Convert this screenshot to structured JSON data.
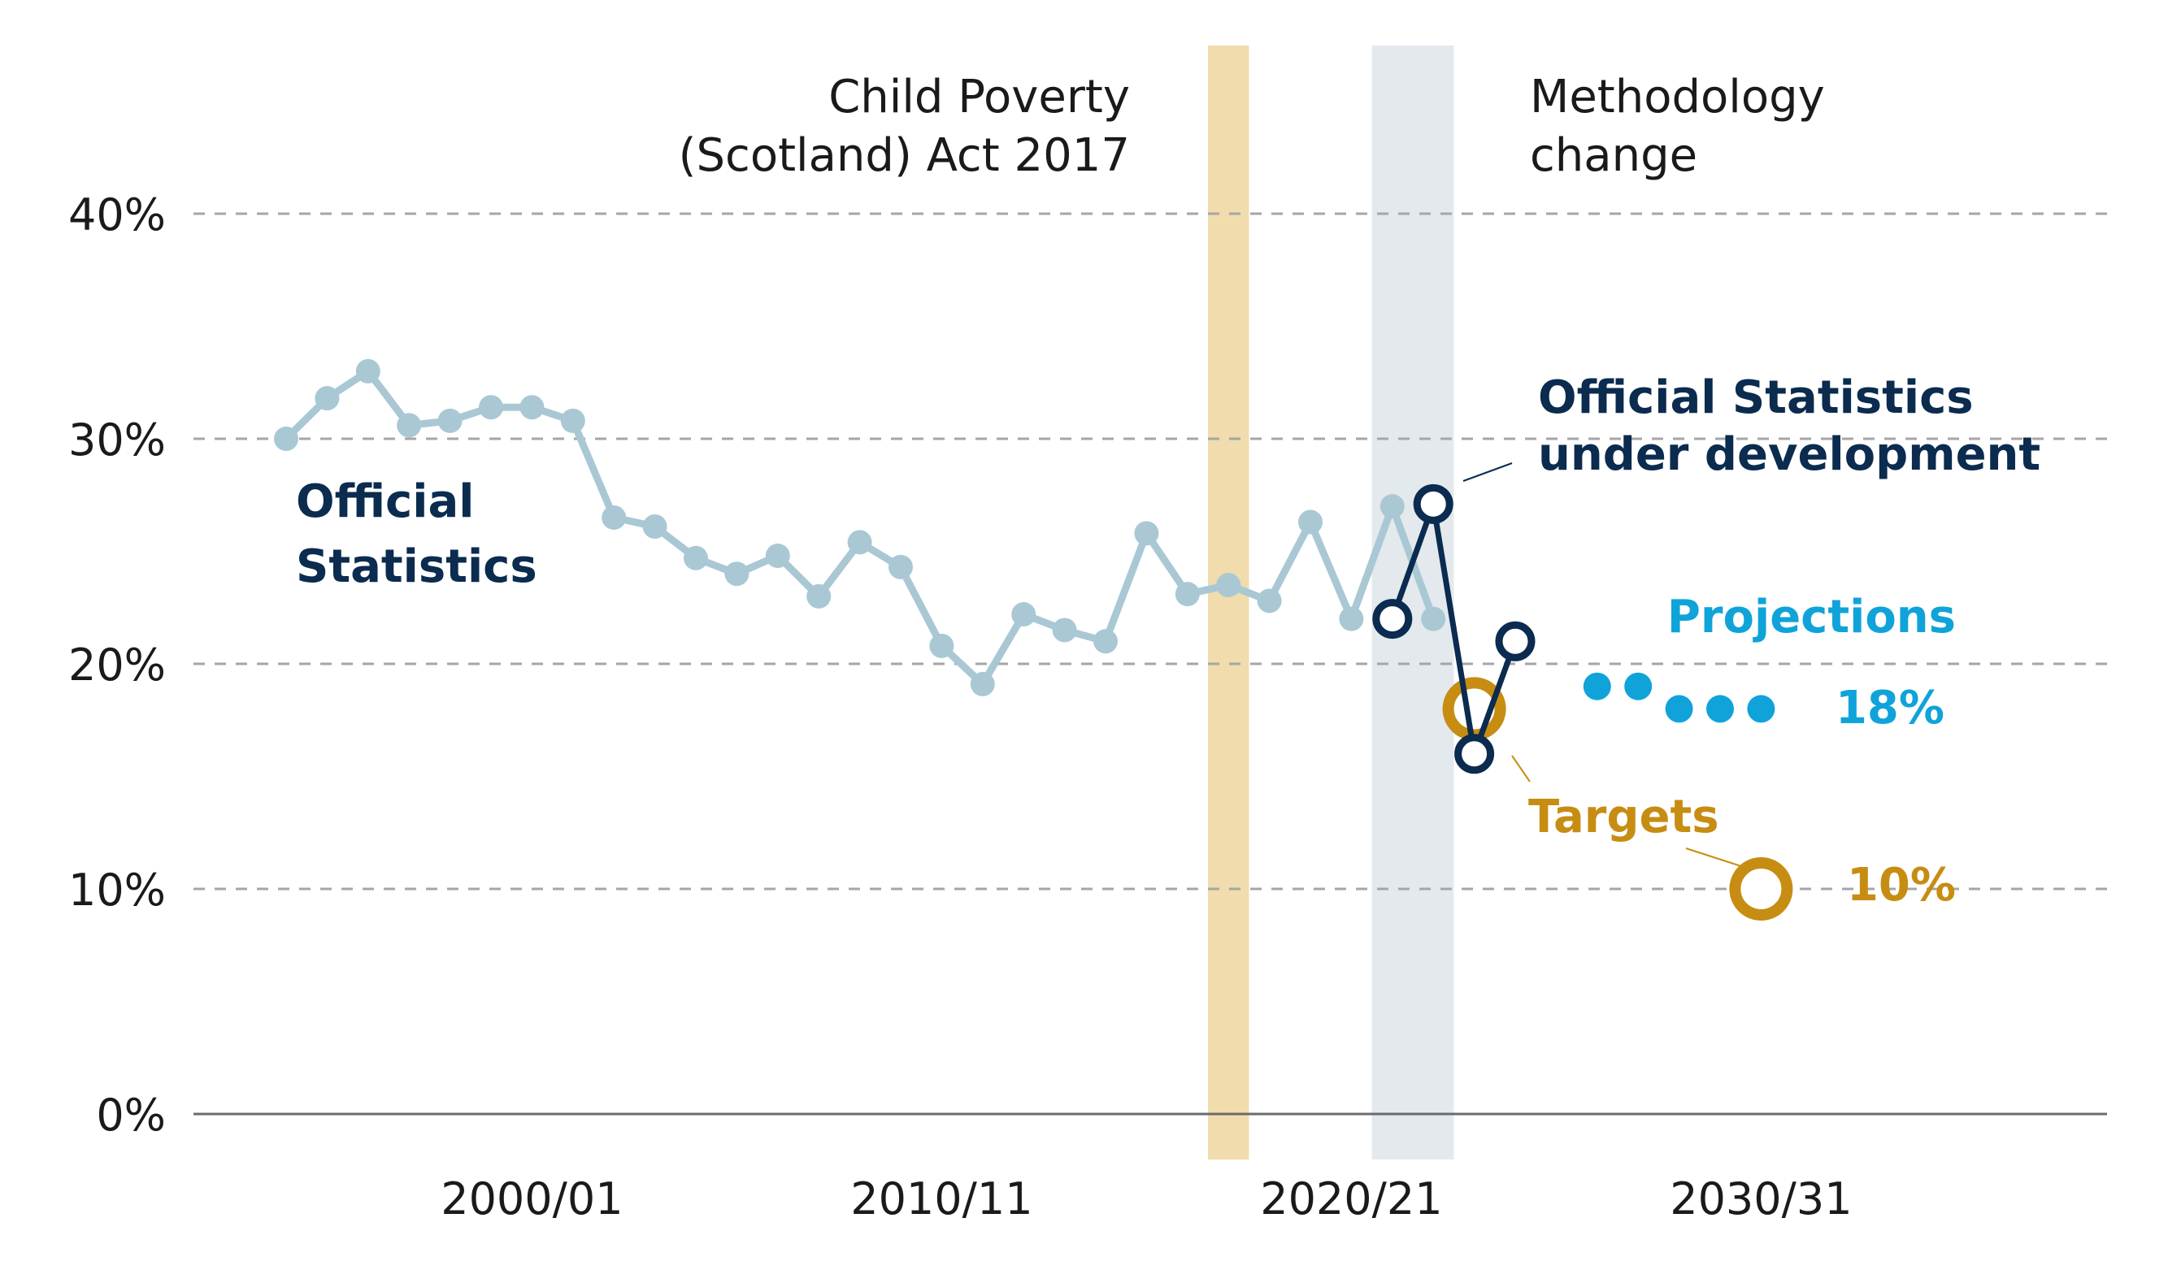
{
  "chart_data": {
    "type": "line",
    "ylim": [
      0,
      40
    ],
    "y_ticks": [
      "0%",
      "10%",
      "20%",
      "30%",
      "40%"
    ],
    "x_ticks": [
      {
        "x": 2000,
        "label": "2000/01"
      },
      {
        "x": 2010,
        "label": "2010/11"
      },
      {
        "x": 2020,
        "label": "2020/21"
      },
      {
        "x": 2030,
        "label": "2030/31"
      }
    ],
    "xlim": [
      1992,
      2039
    ],
    "grid": "dashed horizontal",
    "bands": [
      {
        "name": "act",
        "x_start": 2016.5,
        "x_end": 2017.5,
        "color": "#F0DCAC"
      },
      {
        "name": "method",
        "x_start": 2020.5,
        "x_end": 2022.5,
        "color": "#E4E9EE"
      }
    ],
    "band_labels": {
      "act": [
        "Child Poverty",
        "(Scotland) Act 2017"
      ],
      "method": [
        "Methodology",
        "change"
      ]
    },
    "series": [
      {
        "name": "Official Statistics",
        "label_lines": [
          "Official",
          "Statistics"
        ],
        "color": "#A9C8D4",
        "x": [
          1994,
          1995,
          1996,
          1997,
          1998,
          1999,
          2000,
          2001,
          2002,
          2003,
          2004,
          2005,
          2006,
          2007,
          2008,
          2009,
          2010,
          2011,
          2012,
          2013,
          2014,
          2015,
          2016,
          2017,
          2018,
          2019,
          2020,
          2021,
          2022
        ],
        "y": [
          30.0,
          31.8,
          33.0,
          30.6,
          30.8,
          31.4,
          31.4,
          30.8,
          26.5,
          26.1,
          24.7,
          24.0,
          24.8,
          23.0,
          25.4,
          24.3,
          20.8,
          19.1,
          22.2,
          21.5,
          21.0,
          25.8,
          23.1,
          23.5,
          22.8,
          26.3,
          22.0,
          27.0,
          22.0
        ]
      },
      {
        "name": "Official Statistics under development",
        "label_lines": [
          "Official Statistics",
          "under development"
        ],
        "color": "#0B2B4F",
        "x": [
          2021,
          2022,
          2023,
          2024
        ],
        "y": [
          22.0,
          27.1,
          16.0,
          21.0
        ]
      },
      {
        "name": "Projections",
        "label_lines": [
          "Projections"
        ],
        "color": "#0FA3DA",
        "x": [
          2026,
          2027,
          2028,
          2029,
          2030
        ],
        "y": [
          19.0,
          19.0,
          18.0,
          18.0,
          18.0
        ],
        "end_label": "18%"
      },
      {
        "name": "Targets",
        "label_lines": [
          "Targets"
        ],
        "color": "#C78D12",
        "x": [
          2023,
          2030
        ],
        "y": [
          18.0,
          10.0
        ],
        "end_label": "10%"
      }
    ]
  }
}
